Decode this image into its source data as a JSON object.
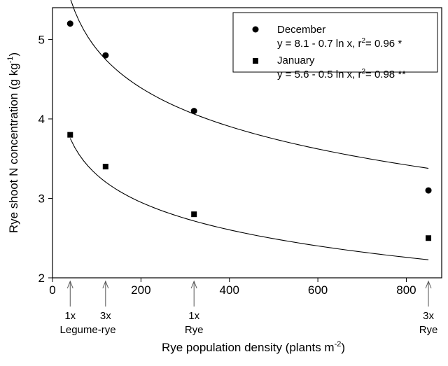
{
  "chart_data": {
    "type": "scatter",
    "xlabel": "Rye population density (plants m-2)",
    "xlabel_parts": {
      "main": "Rye population density (plants m",
      "sup": "-2",
      "tail": ")"
    },
    "ylabel": "Rye shoot N concentration (g kg-1)",
    "ylabel_parts": {
      "main": "Rye shoot N concentration (g kg",
      "sup": "-1",
      "tail": ")"
    },
    "xlim": [
      0,
      880
    ],
    "ylim": [
      2,
      5.4
    ],
    "x_ticks": [
      0,
      200,
      400,
      600,
      800
    ],
    "y_ticks": [
      2,
      3,
      4,
      5
    ],
    "grid": false,
    "legend_position": "top-right",
    "series": [
      {
        "name": "December",
        "marker": "circle",
        "equation_parts": {
          "pre": "y = 8.1 - 0.7 ln x, r",
          "sup": "2",
          "post": "= 0.96 *"
        },
        "fit": {
          "a": 8.1,
          "b": 0.7,
          "x_range": [
            40,
            850
          ]
        },
        "x": [
          40,
          120,
          320,
          850
        ],
        "y": [
          5.2,
          4.8,
          4.1,
          3.1
        ]
      },
      {
        "name": "January",
        "marker": "square",
        "equation_parts": {
          "pre": "y = 5.6 - 0.5 ln x, r",
          "sup": "2",
          "post": "= 0.98 **"
        },
        "fit": {
          "a": 5.6,
          "b": 0.5,
          "x_range": [
            40,
            850
          ]
        },
        "x": [
          40,
          120,
          320,
          850
        ],
        "y": [
          3.8,
          3.4,
          2.8,
          2.5
        ]
      }
    ],
    "x_markers": [
      {
        "x": 40,
        "lines": [
          "1x"
        ]
      },
      {
        "x": 120,
        "lines": [
          "3x"
        ]
      },
      {
        "x": 80,
        "lines": [
          "",
          "Legume-rye"
        ]
      },
      {
        "x": 320,
        "lines": [
          "1x",
          "Rye"
        ]
      },
      {
        "x": 850,
        "lines": [
          "3x",
          "Rye"
        ]
      }
    ]
  }
}
